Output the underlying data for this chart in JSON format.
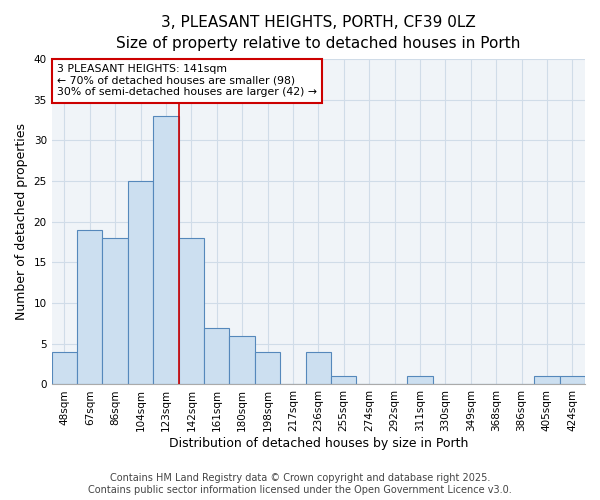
{
  "title1": "3, PLEASANT HEIGHTS, PORTH, CF39 0LZ",
  "title2": "Size of property relative to detached houses in Porth",
  "xlabel": "Distribution of detached houses by size in Porth",
  "ylabel": "Number of detached properties",
  "bin_labels": [
    "48sqm",
    "67sqm",
    "86sqm",
    "104sqm",
    "123sqm",
    "142sqm",
    "161sqm",
    "180sqm",
    "198sqm",
    "217sqm",
    "236sqm",
    "255sqm",
    "274sqm",
    "292sqm",
    "311sqm",
    "330sqm",
    "349sqm",
    "368sqm",
    "386sqm",
    "405sqm",
    "424sqm"
  ],
  "values": [
    4,
    19,
    18,
    25,
    33,
    18,
    7,
    6,
    4,
    0,
    4,
    1,
    0,
    0,
    1,
    0,
    0,
    0,
    0,
    1,
    1
  ],
  "bar_color": "#ccdff0",
  "bar_edge_color": "#5588bb",
  "property_line_idx": 5,
  "property_line_color": "#cc0000",
  "annotation_line1": "3 PLEASANT HEIGHTS: 141sqm",
  "annotation_line2": "← 70% of detached houses are smaller (98)",
  "annotation_line3": "30% of semi-detached houses are larger (42) →",
  "annotation_box_color": "#ffffff",
  "annotation_box_edge": "#cc0000",
  "ylim": [
    0,
    40
  ],
  "yticks": [
    0,
    5,
    10,
    15,
    20,
    25,
    30,
    35,
    40
  ],
  "grid_color": "#d0dce8",
  "plot_bg_color": "#f0f4f8",
  "fig_bg_color": "#ffffff",
  "footer": "Contains HM Land Registry data © Crown copyright and database right 2025.\nContains public sector information licensed under the Open Government Licence v3.0.",
  "title_fontsize": 11,
  "subtitle_fontsize": 10,
  "axis_label_fontsize": 9,
  "tick_fontsize": 7.5,
  "footer_fontsize": 7
}
